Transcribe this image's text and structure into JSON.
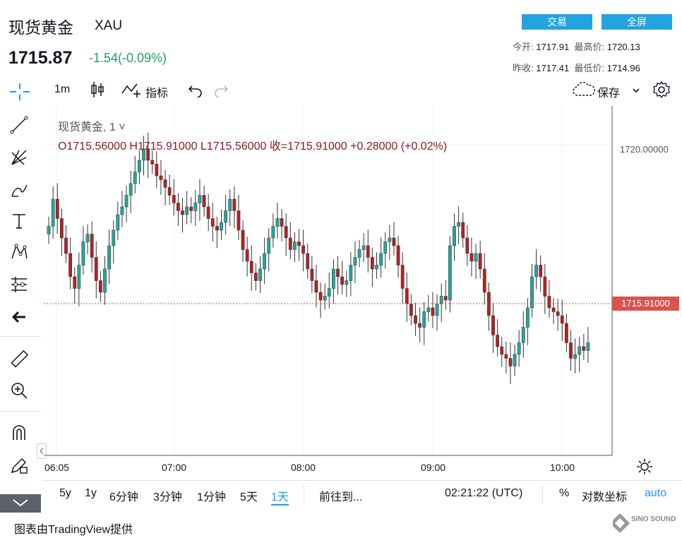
{
  "header": {
    "title": "现货黄金",
    "symbol": "XAU",
    "price": "1715.87",
    "change": "-1.54(-0.09%)",
    "trade_button": "交易",
    "fullscreen_button": "全屏",
    "stats": {
      "open_label": "今开:",
      "open_value": "1717.91",
      "high_label": "最高价:",
      "high_value": "1720.13",
      "prev_close_label": "昨收:",
      "prev_close_value": "1717.41",
      "low_label": "最低价:",
      "low_value": "1714.96"
    }
  },
  "toolbar": {
    "interval": "1m",
    "indicators_label": "指标",
    "save_label": "保存"
  },
  "legend": {
    "series": "现货黄金, 1",
    "ohlc": "O1715.56000  H1715.91000  L1715.56000  收=1715.91000  +0.28000 (+0.02%)"
  },
  "axis": {
    "y_label_top": "1720.00000",
    "last_price_label": "1715.91000",
    "x_labels": [
      "06:05",
      "07:00",
      "08:00",
      "09:00",
      "10:00"
    ]
  },
  "bottom_bar": {
    "ranges": [
      "5y",
      "1y",
      "6分钟",
      "3分钟",
      "1分钟",
      "5天",
      "1天"
    ],
    "active_range": "1天",
    "goto": "前往到...",
    "time": "02:21:22 (UTC)",
    "percent": "%",
    "log": "对数坐标",
    "auto": "auto"
  },
  "credit": "图表由TradingView提供",
  "watermark": "SINO SOUND",
  "colors": {
    "up": "#26a69a",
    "down": "#b22222",
    "accent": "#23a3e0",
    "last_price": "#d9534f"
  },
  "chart_data": {
    "type": "candlestick",
    "title": "现货黄金, 1",
    "y_range": [
      1712.0,
      1721.0
    ],
    "x_ticks": [
      "06:05",
      "07:00",
      "08:00",
      "09:00",
      "10:00"
    ],
    "last_price": 1715.91,
    "close_series": [
      1717.9,
      1718.6,
      1718.1,
      1717.6,
      1717.2,
      1716.6,
      1716.3,
      1716.9,
      1717.5,
      1717.7,
      1717.1,
      1716.5,
      1716.2,
      1716.8,
      1717.4,
      1717.8,
      1718.2,
      1718.4,
      1718.7,
      1719.0,
      1719.3,
      1719.6,
      1719.9,
      1719.6,
      1719.5,
      1719.2,
      1719.1,
      1718.9,
      1718.7,
      1718.5,
      1718.3,
      1718.2,
      1718.4,
      1718.3,
      1718.5,
      1718.7,
      1718.4,
      1718.1,
      1717.9,
      1717.8,
      1718.0,
      1718.3,
      1718.6,
      1718.3,
      1717.8,
      1717.3,
      1717.0,
      1716.7,
      1716.5,
      1716.8,
      1717.2,
      1717.6,
      1717.9,
      1718.1,
      1717.9,
      1717.6,
      1717.3,
      1717.5,
      1717.4,
      1717.2,
      1716.8,
      1716.5,
      1716.2,
      1716.0,
      1716.1,
      1716.3,
      1716.8,
      1716.6,
      1716.4,
      1716.5,
      1716.9,
      1717.1,
      1717.3,
      1717.4,
      1717.1,
      1716.8,
      1716.9,
      1717.2,
      1717.5,
      1717.6,
      1717.4,
      1716.9,
      1716.3,
      1715.9,
      1715.6,
      1715.4,
      1715.3,
      1715.7,
      1715.8,
      1715.6,
      1715.9,
      1716.1,
      1716.0,
      1717.4,
      1717.9,
      1718.0,
      1717.6,
      1717.2,
      1717.0,
      1717.2,
      1716.8,
      1716.2,
      1715.6,
      1715.1,
      1714.8,
      1714.6,
      1714.5,
      1714.3,
      1714.6,
      1714.9,
      1715.3,
      1715.8,
      1716.6,
      1716.9,
      1716.6,
      1716.1,
      1715.8,
      1715.7,
      1715.6,
      1715.4,
      1714.9,
      1714.5,
      1714.6,
      1714.8,
      1714.7,
      1714.9
    ]
  }
}
